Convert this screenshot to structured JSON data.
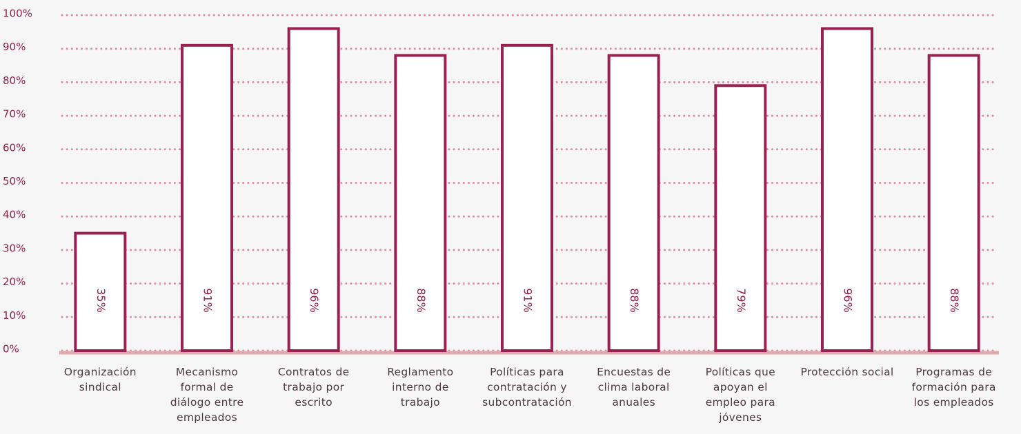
{
  "chart_data": {
    "type": "bar",
    "categories": [
      "Organización sindical",
      "Mecanismo formal de diálogo entre empleados",
      "Contratos de trabajo por escrito",
      "Reglamento interno de trabajo",
      "Políticas para contratación y subcontratación",
      "Encuestas de clima laboral anuales",
      "Políticas que apoyan el empleo para jóvenes",
      "Protección social",
      "Programas de formación para los empleados"
    ],
    "values": [
      35,
      91,
      96,
      88,
      91,
      88,
      79,
      96,
      88
    ],
    "value_labels": [
      "35%",
      "91%",
      "96%",
      "88%",
      "91%",
      "88%",
      "79%",
      "96%",
      "88%"
    ],
    "color": "#9b2150",
    "ylim": [
      0,
      100
    ],
    "yticks": [
      {
        "value": 0,
        "label": "0%"
      },
      {
        "value": 10,
        "label": "10%"
      },
      {
        "value": 20,
        "label": "20%"
      },
      {
        "value": 30,
        "label": "30%"
      },
      {
        "value": 40,
        "label": "40%"
      },
      {
        "value": 50,
        "label": "50%"
      },
      {
        "value": 60,
        "label": "60%"
      },
      {
        "value": 70,
        "label": "70%"
      },
      {
        "value": 80,
        "label": "80%"
      },
      {
        "value": 90,
        "label": "90%"
      },
      {
        "value": 100,
        "label": "100%"
      }
    ],
    "grid": true
  }
}
